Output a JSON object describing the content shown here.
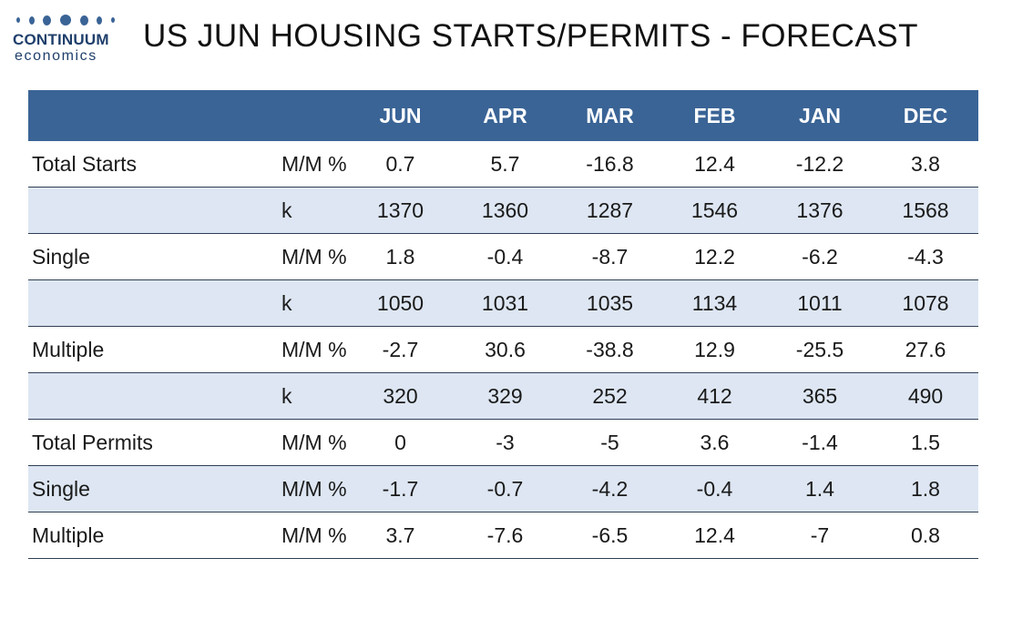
{
  "logo": {
    "name": "CONTINUUM",
    "sub": "economics"
  },
  "title": "US JUN HOUSING STARTS/PERMITS - FORECAST",
  "table": {
    "columns": [
      "",
      "",
      "JUN",
      "APR",
      "MAR",
      "FEB",
      "JAN",
      "DEC"
    ],
    "rows": [
      {
        "label": "Total Starts",
        "unit": "M/M %",
        "values": [
          "0.7",
          "5.7",
          "-16.8",
          "12.4",
          "-12.2",
          "3.8"
        ]
      },
      {
        "label": "",
        "unit": "k",
        "values": [
          "1370",
          "1360",
          "1287",
          "1546",
          "1376",
          "1568"
        ]
      },
      {
        "label": "Single",
        "unit": "M/M %",
        "values": [
          "1.8",
          "-0.4",
          "-8.7",
          "12.2",
          "-6.2",
          "-4.3"
        ]
      },
      {
        "label": "",
        "unit": "k",
        "values": [
          "1050",
          "1031",
          "1035",
          "1134",
          "1011",
          "1078"
        ]
      },
      {
        "label": "Multiple",
        "unit": "M/M %",
        "values": [
          "-2.7",
          "30.6",
          "-38.8",
          "12.9",
          "-25.5",
          "27.6"
        ]
      },
      {
        "label": "",
        "unit": "k",
        "values": [
          "320",
          "329",
          "252",
          "412",
          "365",
          "490"
        ]
      },
      {
        "label": "Total Permits",
        "unit": "M/M %",
        "values": [
          "0",
          "-3",
          "-5",
          "3.6",
          "-1.4",
          "1.5"
        ]
      },
      {
        "label": "Single",
        "unit": "M/M %",
        "values": [
          "-1.7",
          "-0.7",
          "-4.2",
          "-0.4",
          "1.4",
          "1.8"
        ]
      },
      {
        "label": "Multiple",
        "unit": "M/M %",
        "values": [
          "3.7",
          "-7.6",
          "-6.5",
          "12.4",
          "-7",
          "0.8"
        ]
      }
    ]
  },
  "colors": {
    "header": "#3a6496",
    "shaded_row": "#dde6f2",
    "brand": "#1f3f6b"
  }
}
